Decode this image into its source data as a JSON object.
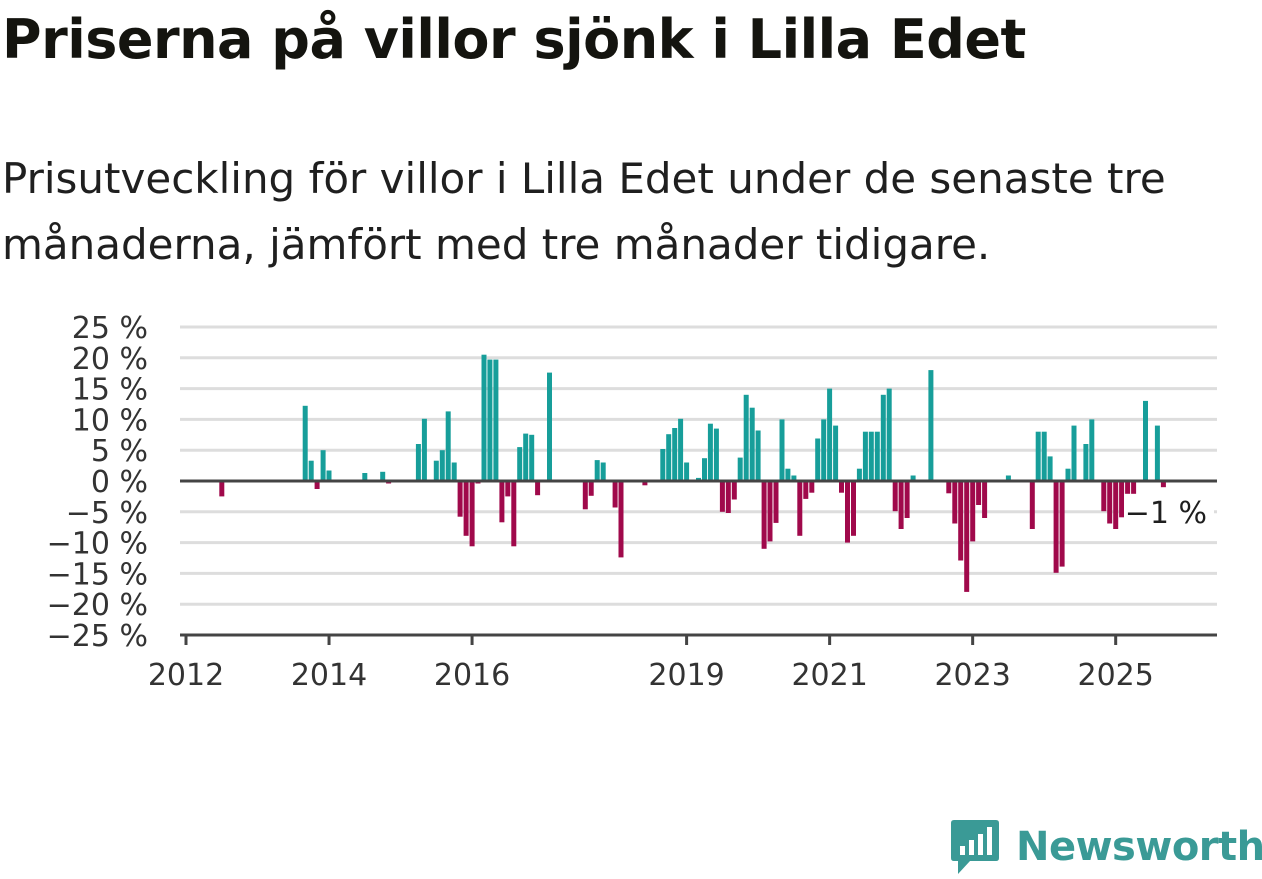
{
  "header": {
    "title": "Priserna på villor sjönk i Lilla Edet",
    "subtitle": "Prisutveckling för villor i Lilla Edet under de senaste tre månaderna, jämfört med tre månader tidigare."
  },
  "brand": {
    "name": "Newsworthy",
    "icon": "newsworthy-logo-icon"
  },
  "colors": {
    "positive": "#179e9a",
    "negative": "#a0094b",
    "grid": "#dddddd",
    "axis": "#444444"
  },
  "chart_data": {
    "type": "bar",
    "title": "Priserna på villor sjönk i Lilla Edet",
    "subtitle": "Prisutveckling för villor i Lilla Edet under de senaste tre månaderna, jämfört med tre månader tidigare.",
    "xlabel": "",
    "ylabel": "",
    "ylim": [
      -25,
      25
    ],
    "y_ticks": [
      {
        "value": 25,
        "label": "25 %"
      },
      {
        "value": 20,
        "label": "20 %"
      },
      {
        "value": 15,
        "label": "15 %"
      },
      {
        "value": 10,
        "label": "10 %"
      },
      {
        "value": 5,
        "label": "5 %"
      },
      {
        "value": 0,
        "label": "0 %"
      },
      {
        "value": -5,
        "label": "−5 %"
      },
      {
        "value": -10,
        "label": "−10 %"
      },
      {
        "value": -15,
        "label": "−15 %"
      },
      {
        "value": -20,
        "label": "−20 %"
      },
      {
        "value": -25,
        "label": "−25 %"
      }
    ],
    "x_range": [
      "2012-01",
      "2026-06"
    ],
    "x_ticks": [
      {
        "value": "2012-01",
        "label": "2012"
      },
      {
        "value": "2014-01",
        "label": "2014"
      },
      {
        "value": "2016-01",
        "label": "2016"
      },
      {
        "value": "2019-01",
        "label": "2019"
      },
      {
        "value": "2021-01",
        "label": "2021"
      },
      {
        "value": "2023-01",
        "label": "2023"
      },
      {
        "value": "2025-01",
        "label": "2025"
      }
    ],
    "grid": true,
    "end_label": "−1 %",
    "points": [
      [
        "2012-07",
        -2.5
      ],
      [
        "2013-09",
        12.2
      ],
      [
        "2013-10",
        3.3
      ],
      [
        "2013-11",
        -1.3
      ],
      [
        "2013-12",
        5.0
      ],
      [
        "2014-01",
        1.7
      ],
      [
        "2014-07",
        1.3
      ],
      [
        "2014-10",
        1.5
      ],
      [
        "2014-11",
        -0.4
      ],
      [
        "2015-04",
        6.0
      ],
      [
        "2015-05",
        10.1
      ],
      [
        "2015-07",
        3.3
      ],
      [
        "2015-08",
        5.0
      ],
      [
        "2015-09",
        11.3
      ],
      [
        "2015-10",
        3.0
      ],
      [
        "2015-11",
        -5.8
      ],
      [
        "2015-12",
        -8.9
      ],
      [
        "2016-01",
        -10.6
      ],
      [
        "2016-02",
        -0.4
      ],
      [
        "2016-03",
        20.5
      ],
      [
        "2016-04",
        19.7
      ],
      [
        "2016-05",
        19.7
      ],
      [
        "2016-06",
        -6.7
      ],
      [
        "2016-07",
        -2.5
      ],
      [
        "2016-08",
        -10.6
      ],
      [
        "2016-09",
        5.5
      ],
      [
        "2016-10",
        7.7
      ],
      [
        "2016-11",
        7.5
      ],
      [
        "2016-12",
        -2.3
      ],
      [
        "2017-02",
        17.6
      ],
      [
        "2017-08",
        -4.6
      ],
      [
        "2017-09",
        -2.4
      ],
      [
        "2017-10",
        3.4
      ],
      [
        "2017-11",
        3.0
      ],
      [
        "2018-01",
        -4.3
      ],
      [
        "2018-02",
        -12.4
      ],
      [
        "2018-06",
        -0.7
      ],
      [
        "2018-09",
        5.2
      ],
      [
        "2018-10",
        7.6
      ],
      [
        "2018-11",
        8.6
      ],
      [
        "2018-12",
        10.1
      ],
      [
        "2019-01",
        3.0
      ],
      [
        "2019-03",
        0.5
      ],
      [
        "2019-04",
        3.7
      ],
      [
        "2019-05",
        9.3
      ],
      [
        "2019-06",
        8.5
      ],
      [
        "2019-07",
        -5.0
      ],
      [
        "2019-08",
        -5.2
      ],
      [
        "2019-09",
        -3.0
      ],
      [
        "2019-10",
        3.8
      ],
      [
        "2019-11",
        14.0
      ],
      [
        "2019-12",
        11.9
      ],
      [
        "2020-01",
        8.2
      ],
      [
        "2020-02",
        -11.0
      ],
      [
        "2020-03",
        -9.8
      ],
      [
        "2020-04",
        -6.8
      ],
      [
        "2020-05",
        10.0
      ],
      [
        "2020-06",
        2.0
      ],
      [
        "2020-07",
        0.9
      ],
      [
        "2020-08",
        -8.9
      ],
      [
        "2020-09",
        -2.9
      ],
      [
        "2020-10",
        -1.9
      ],
      [
        "2020-11",
        6.9
      ],
      [
        "2020-12",
        10.0
      ],
      [
        "2021-01",
        15.0
      ],
      [
        "2021-02",
        9.0
      ],
      [
        "2021-03",
        -1.9
      ],
      [
        "2021-04",
        -10.0
      ],
      [
        "2021-05",
        -8.9
      ],
      [
        "2021-06",
        2.0
      ],
      [
        "2021-07",
        8.0
      ],
      [
        "2021-08",
        8.0
      ],
      [
        "2021-09",
        8.0
      ],
      [
        "2021-10",
        14.0
      ],
      [
        "2021-11",
        15.0
      ],
      [
        "2021-12",
        -4.9
      ],
      [
        "2022-01",
        -7.8
      ],
      [
        "2022-02",
        -6.0
      ],
      [
        "2022-03",
        0.9
      ],
      [
        "2022-06",
        18.0
      ],
      [
        "2022-09",
        -2.0
      ],
      [
        "2022-10",
        -6.9
      ],
      [
        "2022-11",
        -12.9
      ],
      [
        "2022-12",
        -18.0
      ],
      [
        "2023-01",
        -9.8
      ],
      [
        "2023-02",
        -3.9
      ],
      [
        "2023-03",
        -6.0
      ],
      [
        "2023-07",
        0.9
      ],
      [
        "2023-11",
        -7.8
      ],
      [
        "2023-12",
        8.0
      ],
      [
        "2024-01",
        8.0
      ],
      [
        "2024-02",
        4.0
      ],
      [
        "2024-03",
        -14.9
      ],
      [
        "2024-04",
        -13.9
      ],
      [
        "2024-05",
        2.0
      ],
      [
        "2024-06",
        9.0
      ],
      [
        "2024-08",
        6.0
      ],
      [
        "2024-09",
        10.0
      ],
      [
        "2024-11",
        -4.9
      ],
      [
        "2024-12",
        -6.9
      ],
      [
        "2025-01",
        -7.8
      ],
      [
        "2025-02",
        -5.9
      ],
      [
        "2025-03",
        -4.9
      ],
      [
        "2025-04",
        -3.9
      ],
      [
        "2025-06",
        13.0
      ],
      [
        "2025-08",
        9.0
      ],
      [
        "2025-09",
        -1.0
      ]
    ]
  }
}
